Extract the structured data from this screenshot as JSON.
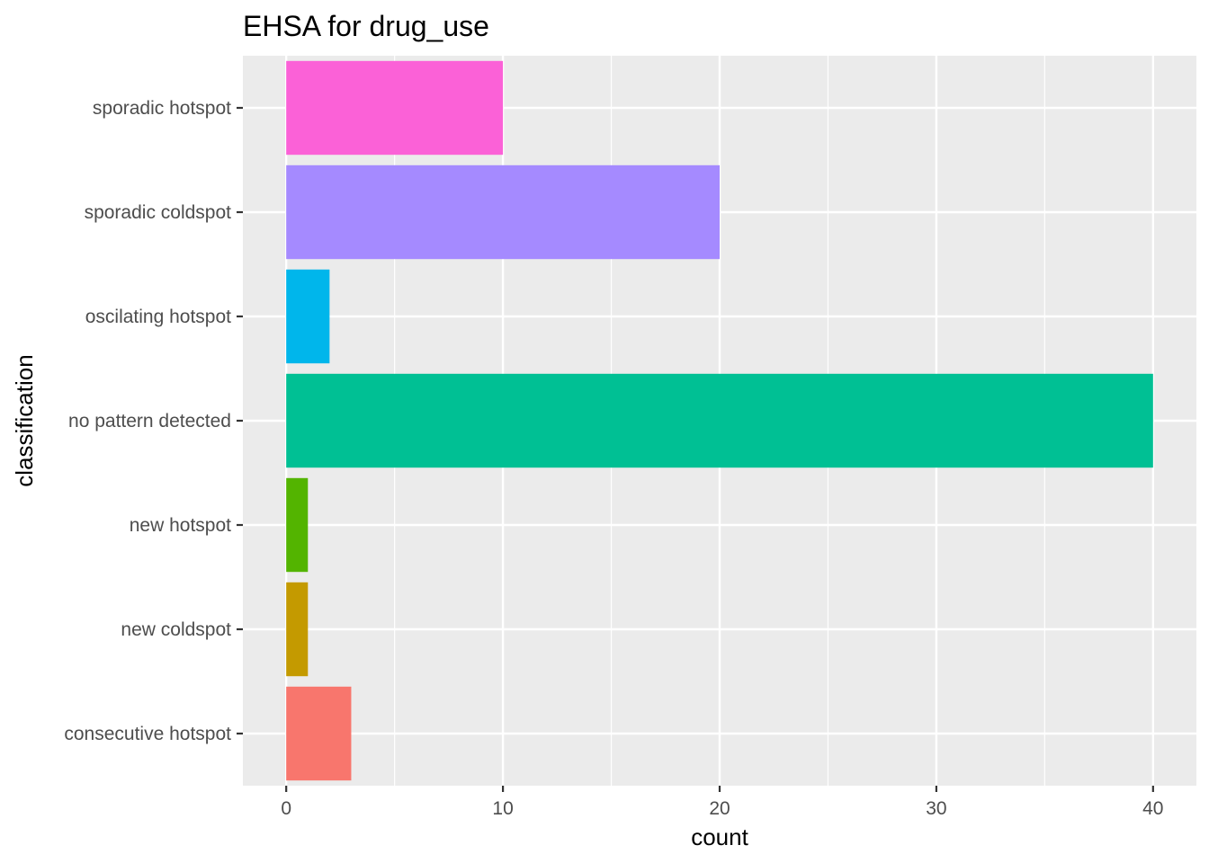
{
  "chart_data": {
    "type": "bar",
    "orientation": "horizontal",
    "title": "EHSA for drug_use",
    "xlabel": "count",
    "ylabel": "classification",
    "categories": [
      "consecutive hotspot",
      "new coldspot",
      "new hotspot",
      "no pattern detected",
      "oscilating hotspot",
      "sporadic coldspot",
      "sporadic hotspot"
    ],
    "values": [
      3,
      1,
      1,
      40,
      2,
      20,
      10
    ],
    "colors": [
      "#F8766D",
      "#C49A00",
      "#53B400",
      "#00C094",
      "#00B6EB",
      "#A58AFF",
      "#FB61D7"
    ],
    "xlim": [
      -2,
      42
    ],
    "xticks": [
      0,
      10,
      20,
      30,
      40
    ],
    "grid": true,
    "legend": "none",
    "panel_background": "#EBEBEB",
    "grid_color": "#FFFFFF"
  }
}
